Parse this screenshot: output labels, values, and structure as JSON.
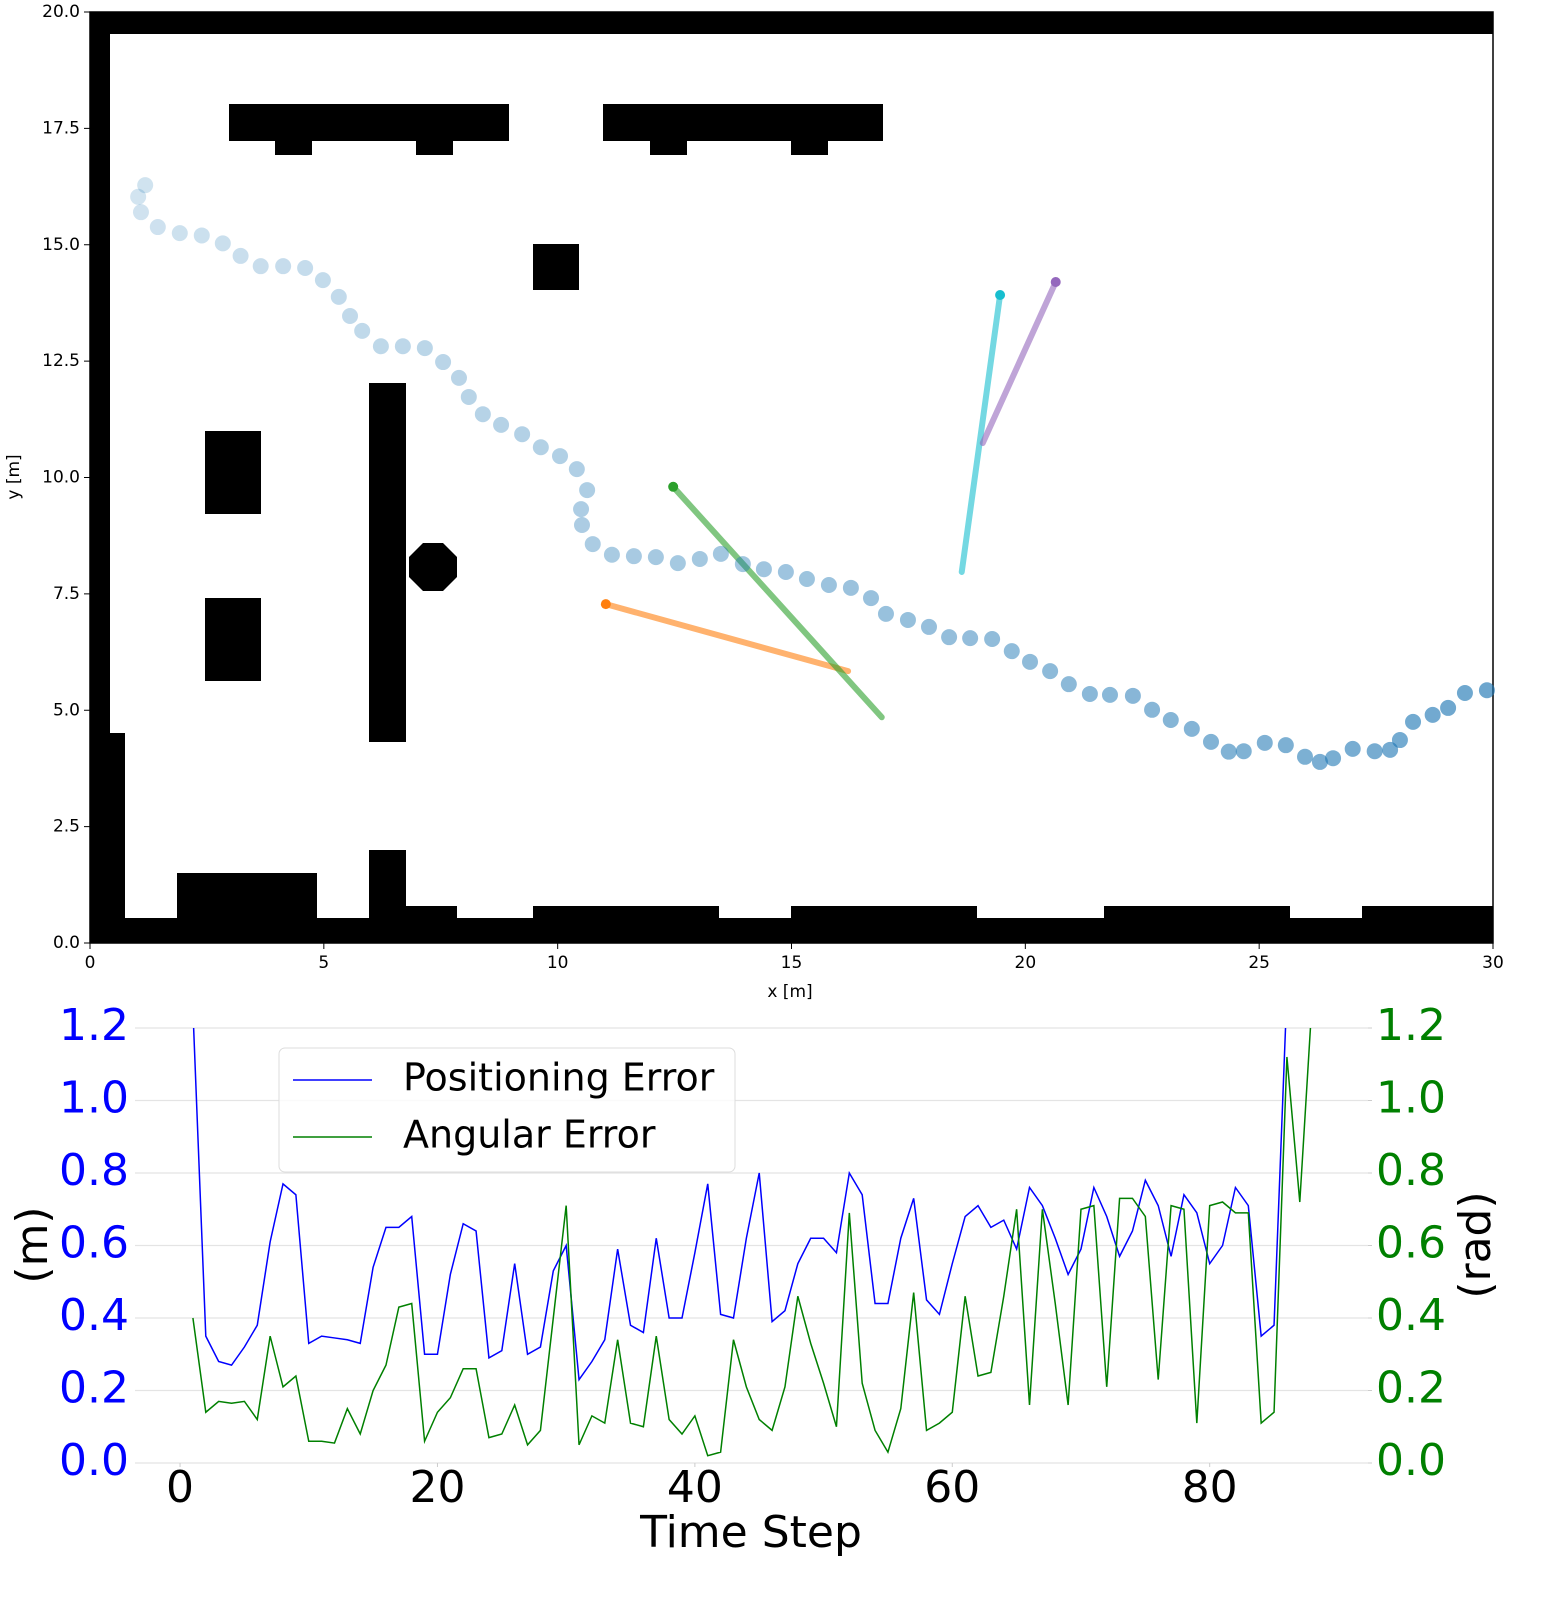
{
  "chart_data": [
    {
      "type": "scatter",
      "xlabel": "x [m]",
      "ylabel": "y [m]",
      "xlim": [
        0,
        30
      ],
      "ylim": [
        0,
        20
      ],
      "xticks": [
        0,
        5,
        10,
        15,
        20,
        25,
        30
      ],
      "yticks": [
        {
          "value": 0,
          "label": "0.0"
        },
        {
          "value": 2.5,
          "label": "2.5"
        },
        {
          "value": 5,
          "label": "5.0"
        },
        {
          "value": 7.5,
          "label": "7.5"
        },
        {
          "value": 10,
          "label": "10.0"
        },
        {
          "value": 12.5,
          "label": "12.5"
        },
        {
          "value": 15,
          "label": "15.0"
        },
        {
          "value": 17.5,
          "label": "17.5"
        },
        {
          "value": 20,
          "label": "20.0"
        }
      ],
      "series": [
        {
          "color": "#1f77b4",
          "x": [
            1.03,
            1.18,
            1.09,
            1.45,
            1.92,
            2.39,
            2.84,
            3.22,
            3.65,
            4.13,
            4.6,
            4.98,
            5.32,
            5.56,
            5.82,
            6.22,
            6.69,
            7.16,
            7.55,
            7.89,
            8.1,
            8.4,
            8.79,
            9.24,
            9.64,
            10.05,
            10.41,
            10.63,
            10.5,
            10.52,
            10.75,
            11.16,
            11.63,
            12.1,
            12.57,
            13.04,
            13.49,
            13.96,
            14.41,
            14.88,
            15.33,
            15.8,
            16.27,
            16.7,
            17.02,
            17.49,
            17.94,
            18.37,
            18.82,
            19.29,
            19.71,
            20.1,
            20.53,
            20.93,
            21.38,
            21.81,
            22.3,
            22.71,
            23.11,
            23.56,
            23.97,
            24.35,
            24.67,
            25.12,
            25.57,
            25.98,
            26.3,
            26.58,
            27.0,
            27.47,
            27.8,
            28.01,
            28.29,
            28.71,
            29.04,
            29.4,
            29.87
          ],
          "y": [
            16.03,
            16.28,
            15.7,
            15.38,
            15.25,
            15.2,
            15.03,
            14.76,
            14.54,
            14.54,
            14.5,
            14.24,
            13.88,
            13.47,
            13.15,
            12.82,
            12.82,
            12.78,
            12.48,
            12.14,
            11.73,
            11.36,
            11.13,
            10.93,
            10.65,
            10.46,
            10.18,
            9.73,
            9.32,
            8.98,
            8.57,
            8.34,
            8.31,
            8.29,
            8.16,
            8.25,
            8.36,
            8.14,
            8.03,
            7.97,
            7.82,
            7.69,
            7.63,
            7.41,
            7.07,
            6.94,
            6.79,
            6.57,
            6.55,
            6.53,
            6.27,
            6.04,
            5.84,
            5.56,
            5.35,
            5.33,
            5.31,
            5.01,
            4.79,
            4.6,
            4.32,
            4.11,
            4.12,
            4.3,
            4.25,
            4.0,
            3.89,
            3.97,
            4.17,
            4.12,
            4.15,
            4.36,
            4.75,
            4.9,
            5.05,
            5.37,
            5.43
          ]
        }
      ],
      "lines": [
        {
          "color": "#ff7f0e",
          "x": [
            11.03,
            16.21
          ],
          "y": [
            7.28,
            5.84
          ]
        },
        {
          "color": "#2ca02c",
          "x": [
            12.47,
            16.93
          ],
          "y": [
            9.8,
            4.85
          ]
        },
        {
          "color": "#17becf",
          "x": [
            19.46,
            18.64
          ],
          "y": [
            13.92,
            7.97
          ]
        },
        {
          "color": "#9467bd",
          "x": [
            20.65,
            19.09
          ],
          "y": [
            14.2,
            10.74
          ]
        }
      ]
    },
    {
      "type": "line",
      "xlabel": "Time Step",
      "ylabel": "(m)",
      "y2label": "(rad)",
      "xlim": [
        -3.5,
        92.3
      ],
      "ylim": [
        0,
        1.2
      ],
      "y2lim": [
        0,
        1.2
      ],
      "xticks": [
        0,
        20,
        40,
        60,
        80
      ],
      "yticks": [
        {
          "value": 0,
          "label": "0.0"
        },
        0.2,
        0.4,
        0.6,
        0.8,
        {
          "value": 1,
          "label": "1.0"
        },
        1.2
      ],
      "y2ticks": [
        {
          "value": 0,
          "label": "0.0"
        },
        0.2,
        0.4,
        0.6,
        0.8,
        {
          "value": 1,
          "label": "1.0"
        },
        1.2
      ],
      "grid": true,
      "legend": "upper left",
      "x": [
        1,
        2,
        3,
        4,
        5,
        6,
        7,
        8,
        9,
        10,
        11,
        12,
        13,
        14,
        15,
        16,
        17,
        18,
        19,
        20,
        21,
        22,
        23,
        24,
        25,
        26,
        27,
        28,
        29,
        30,
        31,
        32,
        33,
        34,
        35,
        36,
        37,
        38,
        39,
        40,
        41,
        42,
        43,
        44,
        45,
        46,
        47,
        48,
        49,
        50,
        51,
        52,
        53,
        54,
        55,
        56,
        57,
        58,
        59,
        60,
        61,
        62,
        63,
        64,
        65,
        66,
        67,
        68,
        69,
        70,
        71,
        72,
        73,
        74,
        75,
        76,
        77,
        78,
        79,
        80,
        81,
        82,
        83,
        84,
        85,
        86,
        87,
        88
      ],
      "series": [
        {
          "name": "Positioning Error",
          "color": "#0000ff",
          "values": [
            1.25,
            0.35,
            0.28,
            0.27,
            0.32,
            0.38,
            0.61,
            0.77,
            0.74,
            0.33,
            0.35,
            0.345,
            0.34,
            0.33,
            0.54,
            0.65,
            0.65,
            0.68,
            0.3,
            0.3,
            0.52,
            0.66,
            0.64,
            0.29,
            0.31,
            0.55,
            0.3,
            0.32,
            0.53,
            0.6,
            0.23,
            0.28,
            0.34,
            0.59,
            0.38,
            0.36,
            0.62,
            0.4,
            0.4,
            0.58,
            0.77,
            0.41,
            0.4,
            0.62,
            0.8,
            0.39,
            0.42,
            0.55,
            0.62,
            0.62,
            0.58,
            0.8,
            0.74,
            0.44,
            0.44,
            0.62,
            0.73,
            0.45,
            0.41,
            0.55,
            0.68,
            0.71,
            0.65,
            0.67,
            0.59,
            0.76,
            0.71,
            0.62,
            0.52,
            0.59,
            0.76,
            0.68,
            0.57,
            0.64,
            0.78,
            0.71,
            0.57,
            0.74,
            0.69,
            0.55,
            0.6,
            0.76,
            0.71,
            0.35,
            0.38,
            1.3,
            null,
            null
          ]
        },
        {
          "name": "Angular Error",
          "color": "#008000",
          "axis": "y2",
          "values": [
            0.4,
            0.14,
            0.17,
            0.165,
            0.17,
            0.12,
            0.35,
            0.21,
            0.24,
            0.06,
            0.06,
            0.055,
            0.15,
            0.08,
            0.2,
            0.27,
            0.43,
            0.44,
            0.06,
            0.14,
            0.18,
            0.26,
            0.26,
            0.07,
            0.08,
            0.16,
            0.05,
            0.09,
            0.4,
            0.71,
            0.05,
            0.13,
            0.11,
            0.34,
            0.11,
            0.1,
            0.35,
            0.12,
            0.08,
            0.13,
            0.02,
            0.03,
            0.34,
            0.21,
            0.12,
            0.09,
            0.21,
            0.46,
            0.33,
            0.22,
            0.1,
            0.69,
            0.22,
            0.09,
            0.03,
            0.15,
            0.47,
            0.09,
            0.11,
            0.14,
            0.46,
            0.24,
            0.25,
            0.46,
            0.7,
            0.16,
            0.7,
            0.44,
            0.16,
            0.7,
            0.71,
            0.21,
            0.73,
            0.73,
            0.68,
            0.23,
            0.71,
            0.7,
            0.11,
            0.71,
            0.72,
            0.69,
            0.69,
            0.11,
            0.14,
            1.12,
            0.72,
            1.3
          ]
        }
      ]
    }
  ]
}
